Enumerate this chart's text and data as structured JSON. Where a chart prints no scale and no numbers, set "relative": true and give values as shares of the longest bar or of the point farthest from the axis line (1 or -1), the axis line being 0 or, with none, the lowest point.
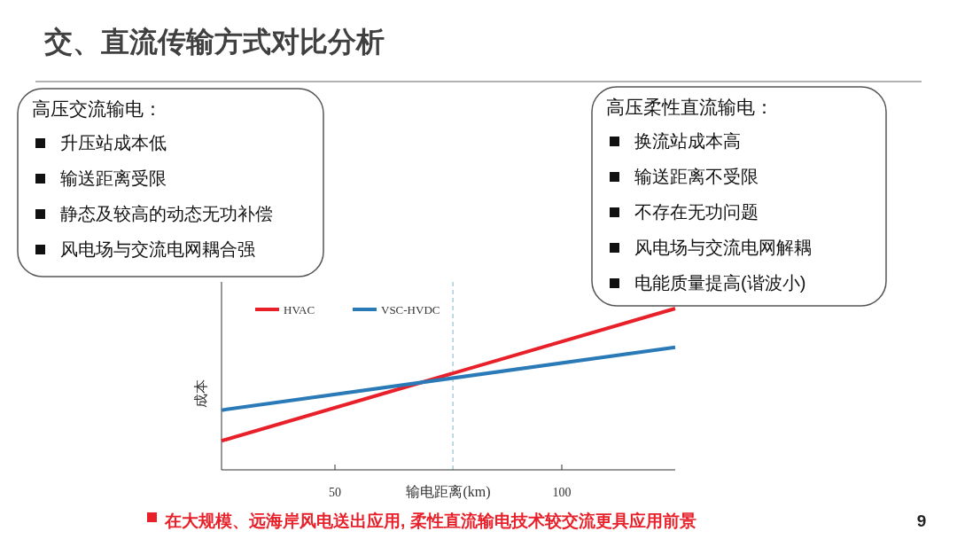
{
  "chart_data": [
    {
      "type": "other",
      "title": "高压交流输电：",
      "annotations": [
        "升压站成本低",
        "输送距离受限",
        "静态及较高的动态无功补偿",
        "风电场与交流电网耦合强"
      ]
    },
    {
      "type": "line",
      "title": "交、直流传输方式对比分析",
      "xlabel": "输电距离(km)",
      "ylabel": "成本",
      "relative": true,
      "xlim": [
        25,
        125
      ],
      "xticks": [
        50,
        100
      ],
      "grid": false,
      "legend": "top left",
      "tick_labels": "x",
      "x": [
        25,
        125
      ],
      "series": [
        {
          "name": "HVAC",
          "color": "#e8202a",
          "values": [
            0.18,
            1.0
          ]
        },
        {
          "name": "VSC-HVDC",
          "color": "#2a7ab8",
          "values": [
            0.37,
            0.76
          ]
        }
      ],
      "ref_lines": [
        {
          "axis": "x",
          "value": 76,
          "color": "#a8cfd8",
          "line_style": "dashed"
        }
      ],
      "annotations": [
        "在大规模、远海岸风电送出应用, 柔性直流输电技术较交流更具应用前景",
        "9"
      ]
    },
    {
      "type": "other",
      "title": "高压柔性直流输电：",
      "annotations": [
        "换流站成本高",
        "输送距离不受限",
        "不存在无功问题",
        "风电场与交流电网解耦",
        "电能质量提高(谐波小)"
      ]
    }
  ]
}
